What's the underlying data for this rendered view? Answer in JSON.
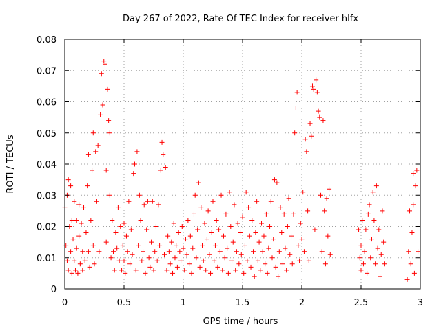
{
  "chart_data": {
    "type": "scatter",
    "title": "Day 267 of 2022, Rate Of TEC Index for receiver hlfx",
    "xlabel": "GPS time / hours",
    "ylabel": "ROTI / TECUs",
    "xlim": [
      0,
      3
    ],
    "ylim": [
      0,
      0.08
    ],
    "x_ticks": [
      0,
      0.5,
      1,
      1.5,
      2,
      2.5,
      3
    ],
    "x_tick_labels": [
      "0",
      "0.5",
      "1",
      "1.5",
      "2",
      "2.5",
      "3"
    ],
    "y_ticks": [
      0,
      0.01,
      0.02,
      0.03,
      0.04,
      0.05,
      0.06,
      0.07,
      0.08
    ],
    "y_tick_labels": [
      "0",
      "0.01",
      "0.02",
      "0.03",
      "0.04",
      "0.05",
      "0.06",
      "0.07",
      "0.08"
    ],
    "grid": true,
    "marker": "plus",
    "color": "#ff0000",
    "series": [
      {
        "values": [
          [
            0.0,
            0.026
          ],
          [
            0.01,
            0.014
          ],
          [
            0.02,
            0.009
          ],
          [
            0.02,
            0.03
          ],
          [
            0.03,
            0.006
          ],
          [
            0.03,
            0.035
          ],
          [
            0.04,
            0.02
          ],
          [
            0.05,
            0.012
          ],
          [
            0.05,
            0.033
          ],
          [
            0.06,
            0.005
          ],
          [
            0.06,
            0.022
          ],
          [
            0.07,
            0.016
          ],
          [
            0.08,
            0.009
          ],
          [
            0.08,
            0.028
          ],
          [
            0.09,
            0.006
          ],
          [
            0.1,
            0.022
          ],
          [
            0.1,
            0.013
          ],
          [
            0.11,
            0.005
          ],
          [
            0.12,
            0.017
          ],
          [
            0.12,
            0.027
          ],
          [
            0.13,
            0.008
          ],
          [
            0.14,
            0.021
          ],
          [
            0.15,
            0.006
          ],
          [
            0.15,
            0.012
          ],
          [
            0.16,
            0.026
          ],
          [
            0.17,
            0.009
          ],
          [
            0.18,
            0.018
          ],
          [
            0.19,
            0.033
          ],
          [
            0.2,
            0.012
          ],
          [
            0.2,
            0.043
          ],
          [
            0.21,
            0.007
          ],
          [
            0.22,
            0.022
          ],
          [
            0.23,
            0.038
          ],
          [
            0.24,
            0.05
          ],
          [
            0.24,
            0.014
          ],
          [
            0.25,
            0.008
          ],
          [
            0.26,
            0.044
          ],
          [
            0.27,
            0.028
          ],
          [
            0.28,
            0.046
          ],
          [
            0.29,
            0.012
          ],
          [
            0.3,
            0.056
          ],
          [
            0.31,
            0.069
          ],
          [
            0.32,
            0.059
          ],
          [
            0.33,
            0.073
          ],
          [
            0.34,
            0.072
          ],
          [
            0.35,
            0.038
          ],
          [
            0.35,
            0.015
          ],
          [
            0.36,
            0.064
          ],
          [
            0.37,
            0.054
          ],
          [
            0.38,
            0.05
          ],
          [
            0.38,
            0.03
          ],
          [
            0.39,
            0.01
          ],
          [
            0.4,
            0.022
          ],
          [
            0.41,
            0.012
          ],
          [
            0.42,
            0.006
          ],
          [
            0.43,
            0.018
          ],
          [
            0.44,
            0.013
          ],
          [
            0.45,
            0.026
          ],
          [
            0.46,
            0.009
          ],
          [
            0.47,
            0.02
          ],
          [
            0.48,
            0.006
          ],
          [
            0.49,
            0.014
          ],
          [
            0.5,
            0.021
          ],
          [
            0.5,
            0.009
          ],
          [
            0.51,
            0.005
          ],
          [
            0.52,
            0.017
          ],
          [
            0.53,
            0.012
          ],
          [
            0.54,
            0.028
          ],
          [
            0.55,
            0.008
          ],
          [
            0.56,
            0.019
          ],
          [
            0.57,
            0.011
          ],
          [
            0.58,
            0.037
          ],
          [
            0.59,
            0.04
          ],
          [
            0.6,
            0.006
          ],
          [
            0.61,
            0.044
          ],
          [
            0.62,
            0.014
          ],
          [
            0.63,
            0.03
          ],
          [
            0.64,
            0.022
          ],
          [
            0.65,
            0.009
          ],
          [
            0.66,
            0.012
          ],
          [
            0.67,
            0.027
          ],
          [
            0.68,
            0.005
          ],
          [
            0.69,
            0.019
          ],
          [
            0.7,
            0.028
          ],
          [
            0.71,
            0.01
          ],
          [
            0.72,
            0.007
          ],
          [
            0.73,
            0.015
          ],
          [
            0.74,
            0.028
          ],
          [
            0.75,
            0.006
          ],
          [
            0.76,
            0.012
          ],
          [
            0.77,
            0.02
          ],
          [
            0.78,
            0.009
          ],
          [
            0.79,
            0.027
          ],
          [
            0.8,
            0.014
          ],
          [
            0.81,
            0.038
          ],
          [
            0.82,
            0.047
          ],
          [
            0.83,
            0.043
          ],
          [
            0.84,
            0.011
          ],
          [
            0.85,
            0.039
          ],
          [
            0.86,
            0.006
          ],
          [
            0.87,
            0.017
          ],
          [
            0.88,
            0.012
          ],
          [
            0.89,
            0.008
          ],
          [
            0.9,
            0.015
          ],
          [
            0.91,
            0.005
          ],
          [
            0.92,
            0.021
          ],
          [
            0.93,
            0.01
          ],
          [
            0.94,
            0.014
          ],
          [
            0.95,
            0.007
          ],
          [
            0.96,
            0.018
          ],
          [
            0.97,
            0.012
          ],
          [
            0.98,
            0.009
          ],
          [
            0.99,
            0.02
          ],
          [
            1.0,
            0.013
          ],
          [
            1.01,
            0.006
          ],
          [
            1.02,
            0.016
          ],
          [
            1.03,
            0.011
          ],
          [
            1.04,
            0.022
          ],
          [
            1.05,
            0.008
          ],
          [
            1.06,
            0.017
          ],
          [
            1.07,
            0.005
          ],
          [
            1.08,
            0.013
          ],
          [
            1.09,
            0.024
          ],
          [
            1.1,
            0.03
          ],
          [
            1.11,
            0.01
          ],
          [
            1.12,
            0.019
          ],
          [
            1.13,
            0.034
          ],
          [
            1.14,
            0.007
          ],
          [
            1.15,
            0.026
          ],
          [
            1.16,
            0.014
          ],
          [
            1.17,
            0.009
          ],
          [
            1.18,
            0.021
          ],
          [
            1.19,
            0.006
          ],
          [
            1.2,
            0.016
          ],
          [
            1.21,
            0.025
          ],
          [
            1.22,
            0.011
          ],
          [
            1.23,
            0.005
          ],
          [
            1.24,
            0.018
          ],
          [
            1.25,
            0.028
          ],
          [
            1.26,
            0.009
          ],
          [
            1.27,
            0.014
          ],
          [
            1.28,
            0.022
          ],
          [
            1.29,
            0.007
          ],
          [
            1.3,
            0.019
          ],
          [
            1.31,
            0.012
          ],
          [
            1.32,
            0.03
          ],
          [
            1.33,
            0.006
          ],
          [
            1.34,
            0.017
          ],
          [
            1.35,
            0.01
          ],
          [
            1.36,
            0.024
          ],
          [
            1.37,
            0.013
          ],
          [
            1.38,
            0.005
          ],
          [
            1.39,
            0.031
          ],
          [
            1.4,
            0.02
          ],
          [
            1.41,
            0.009
          ],
          [
            1.42,
            0.015
          ],
          [
            1.43,
            0.027
          ],
          [
            1.44,
            0.006
          ],
          [
            1.45,
            0.012
          ],
          [
            1.46,
            0.021
          ],
          [
            1.47,
            0.008
          ],
          [
            1.48,
            0.018
          ],
          [
            1.49,
            0.011
          ],
          [
            1.5,
            0.023
          ],
          [
            1.51,
            0.005
          ],
          [
            1.52,
            0.014
          ],
          [
            1.53,
            0.031
          ],
          [
            1.54,
            0.009
          ],
          [
            1.55,
            0.026
          ],
          [
            1.56,
            0.017
          ],
          [
            1.57,
            0.007
          ],
          [
            1.58,
            0.022
          ],
          [
            1.59,
            0.012
          ],
          [
            1.6,
            0.004
          ],
          [
            1.61,
            0.018
          ],
          [
            1.62,
            0.028
          ],
          [
            1.63,
            0.009
          ],
          [
            1.64,
            0.015
          ],
          [
            1.65,
            0.006
          ],
          [
            1.66,
            0.021
          ],
          [
            1.67,
            0.012
          ],
          [
            1.68,
            0.017
          ],
          [
            1.69,
            0.008
          ],
          [
            1.7,
            0.024
          ],
          [
            1.71,
            0.005
          ],
          [
            1.72,
            0.013
          ],
          [
            1.73,
            0.02
          ],
          [
            1.74,
            0.028
          ],
          [
            1.75,
            0.01
          ],
          [
            1.76,
            0.016
          ],
          [
            1.77,
            0.035
          ],
          [
            1.78,
            0.007
          ],
          [
            1.79,
            0.034
          ],
          [
            1.8,
            0.004
          ],
          [
            1.81,
            0.012
          ],
          [
            1.82,
            0.026
          ],
          [
            1.83,
            0.018
          ],
          [
            1.84,
            0.008
          ],
          [
            1.85,
            0.024
          ],
          [
            1.86,
            0.013
          ],
          [
            1.87,
            0.006
          ],
          [
            1.88,
            0.02
          ],
          [
            1.89,
            0.029
          ],
          [
            1.9,
            0.011
          ],
          [
            1.91,
            0.017
          ],
          [
            1.92,
            0.008
          ],
          [
            1.93,
            0.024
          ],
          [
            1.94,
            0.05
          ],
          [
            1.95,
            0.058
          ],
          [
            1.96,
            0.063
          ],
          [
            1.97,
            0.014
          ],
          [
            1.98,
            0.009
          ],
          [
            1.99,
            0.021
          ],
          [
            2.0,
            0.016
          ],
          [
            2.01,
            0.031
          ],
          [
            2.02,
            0.012
          ],
          [
            2.03,
            0.048
          ],
          [
            2.04,
            0.044
          ],
          [
            2.05,
            0.025
          ],
          [
            2.06,
            0.009
          ],
          [
            2.07,
            0.053
          ],
          [
            2.08,
            0.049
          ],
          [
            2.09,
            0.065
          ],
          [
            2.1,
            0.064
          ],
          [
            2.11,
            0.019
          ],
          [
            2.12,
            0.067
          ],
          [
            2.13,
            0.063
          ],
          [
            2.14,
            0.057
          ],
          [
            2.15,
            0.055
          ],
          [
            2.16,
            0.03
          ],
          [
            2.17,
            0.012
          ],
          [
            2.18,
            0.054
          ],
          [
            2.19,
            0.025
          ],
          [
            2.2,
            0.008
          ],
          [
            2.21,
            0.029
          ],
          [
            2.22,
            0.017
          ],
          [
            2.23,
            0.032
          ],
          [
            2.24,
            0.011
          ],
          [
            2.48,
            0.019
          ],
          [
            2.49,
            0.01
          ],
          [
            2.5,
            0.006
          ],
          [
            2.5,
            0.014
          ],
          [
            2.51,
            0.022
          ],
          [
            2.52,
            0.008
          ],
          [
            2.53,
            0.012
          ],
          [
            2.54,
            0.019
          ],
          [
            2.55,
            0.005
          ],
          [
            2.56,
            0.024
          ],
          [
            2.57,
            0.027
          ],
          [
            2.58,
            0.01
          ],
          [
            2.59,
            0.016
          ],
          [
            2.6,
            0.031
          ],
          [
            2.61,
            0.022
          ],
          [
            2.62,
            0.008
          ],
          [
            2.63,
            0.033
          ],
          [
            2.64,
            0.013
          ],
          [
            2.65,
            0.019
          ],
          [
            2.66,
            0.004
          ],
          [
            2.67,
            0.011
          ],
          [
            2.68,
            0.025
          ],
          [
            2.69,
            0.015
          ],
          [
            2.7,
            0.008
          ],
          [
            2.89,
            0.003
          ],
          [
            2.9,
            0.012
          ],
          [
            2.91,
            0.025
          ],
          [
            2.92,
            0.008
          ],
          [
            2.93,
            0.018
          ],
          [
            2.94,
            0.037
          ],
          [
            2.94,
            0.027
          ],
          [
            2.95,
            0.005
          ],
          [
            2.96,
            0.033
          ],
          [
            2.97,
            0.038
          ],
          [
            2.98,
            0.012
          ]
        ]
      }
    ]
  }
}
